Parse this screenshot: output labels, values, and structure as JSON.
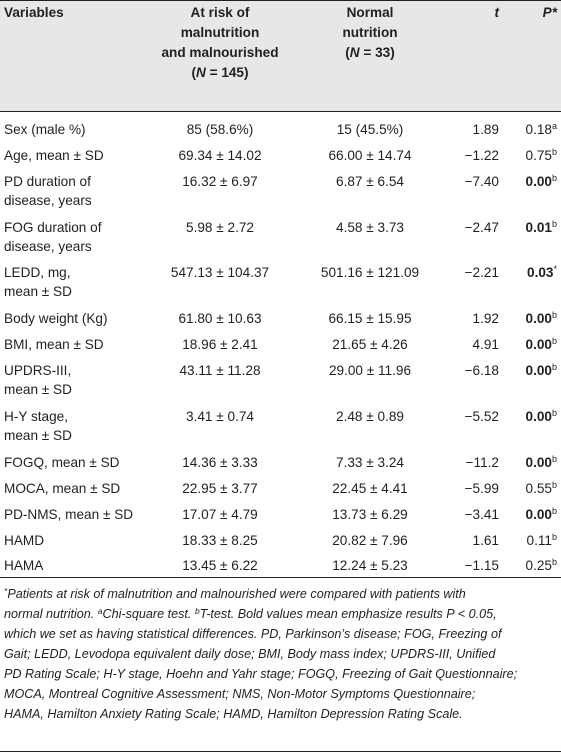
{
  "header": {
    "col1": "Variables",
    "col2_line1": "At risk of",
    "col2_line2": "malnutrition",
    "col2_line3": "and malnourished",
    "col2_n": "145",
    "col3_line1": "Normal",
    "col3_line2": "nutrition",
    "col3_n": "33",
    "n_open": "(",
    "n_label": "N",
    "n_eq": " = ",
    "n_close": ")",
    "col4": "t",
    "col5": "P*"
  },
  "rows": [
    {
      "label1": "Sex (male %)",
      "label2": "",
      "risk": "85 (58.6%)",
      "normal": "15 (45.5%)",
      "t": "1.89",
      "p": "0.18",
      "sup": "a",
      "bold": false
    },
    {
      "label1": "Age, mean ± SD",
      "label2": "",
      "risk": "69.34 ± 14.02",
      "normal": "66.00 ± 14.74",
      "t": "−1.22",
      "p": "0.75",
      "sup": "b",
      "bold": false
    },
    {
      "label1": "PD duration of",
      "label2": "disease, years",
      "risk": "16.32 ± 6.97",
      "normal": "6.87 ± 6.54",
      "t": "−7.40",
      "p": "0.00",
      "sup": "b",
      "bold": true
    },
    {
      "label1": "FOG duration of",
      "label2": "disease, years",
      "risk": "5.98 ± 2.72",
      "normal": "4.58 ± 3.73",
      "t": "−2.47",
      "p": "0.01",
      "sup": "b",
      "bold": true
    },
    {
      "label1": "LEDD, mg,",
      "label2": "mean ± SD",
      "risk": "547.13 ± 104.37",
      "normal": "501.16 ± 121.09",
      "t": "−2.21",
      "p": "0.03",
      "sup": "*",
      "bold": true
    },
    {
      "label1": "Body weight (Kg)",
      "label2": "",
      "risk": "61.80 ± 10.63",
      "normal": "66.15 ± 15.95",
      "t": "1.92",
      "p": "0.00",
      "sup": "b",
      "bold": true
    },
    {
      "label1": "BMI, mean ± SD",
      "label2": "",
      "risk": "18.96 ± 2.41",
      "normal": "21.65 ± 4.26",
      "t": "4.91",
      "p": "0.00",
      "sup": "b",
      "bold": true
    },
    {
      "label1": "UPDRS-III,",
      "label2": "mean ± SD",
      "risk": "43.11 ± 11.28",
      "normal": "29.00 ± 11.96",
      "t": "−6.18",
      "p": "0.00",
      "sup": "b",
      "bold": true
    },
    {
      "label1": "H-Y stage,",
      "label2": "mean ± SD",
      "risk": "3.41 ± 0.74",
      "normal": "2.48 ± 0.89",
      "t": "−5.52",
      "p": "0.00",
      "sup": "b",
      "bold": true
    },
    {
      "label1": "FOGQ, mean ± SD",
      "label2": "",
      "risk": "14.36 ± 3.33",
      "normal": "7.33 ± 3.24",
      "t": "−11.2",
      "p": "0.00",
      "sup": "b",
      "bold": true
    },
    {
      "label1": "MOCA, mean ± SD",
      "label2": "",
      "risk": "22.95 ± 3.77",
      "normal": "22.45 ± 4.41",
      "t": "−5.99",
      "p": "0.55",
      "sup": "b",
      "bold": false
    },
    {
      "label1": "PD-NMS, mean ± SD",
      "label2": "",
      "risk": "17.07 ± 4.79",
      "normal": "13.73 ± 6.29",
      "t": "−3.41",
      "p": "0.00",
      "sup": "b",
      "bold": true
    },
    {
      "label1": "HAMD",
      "label2": "",
      "risk": "18.33 ± 8.25",
      "normal": "20.82 ± 7.96",
      "t": "1.61",
      "p": "0.11",
      "sup": "b",
      "bold": false
    },
    {
      "label1": "HAMA",
      "label2": "",
      "risk": "13.45 ± 6.22",
      "normal": "12.24 ± 5.23",
      "t": "−1.15",
      "p": "0.25",
      "sup": "b",
      "bold": false
    }
  ],
  "footnote": {
    "star": "*",
    "line1": "Patients at risk of malnutrition and malnourished were compared with patients with",
    "line2a": "normal nutrition. ",
    "sup_a": "a",
    "line2b": "Chi-square test. ",
    "sup_b": "b",
    "line2c": "T-test. Bold values mean emphasize results P < 0.05,",
    "line3": "which we set as having statistical differences. PD, Parkinson’s disease; FOG, Freezing of",
    "line4": "Gait; LEDD, Levodopa equivalent daily dose; BMI, Body mass index; UPDRS-III, Unified",
    "line5": "PD Rating Scale; H-Y stage, Hoehn and Yahr stage; FOGQ, Freezing of Gait Questionnaire;",
    "line6": "MOCA, Montreal Cognitive Assessment; NMS, Non-Motor Symptoms Questionnaire;",
    "line7": "HAMA, Hamilton Anxiety Rating Scale; HAMD, Hamilton Depression Rating Scale."
  }
}
